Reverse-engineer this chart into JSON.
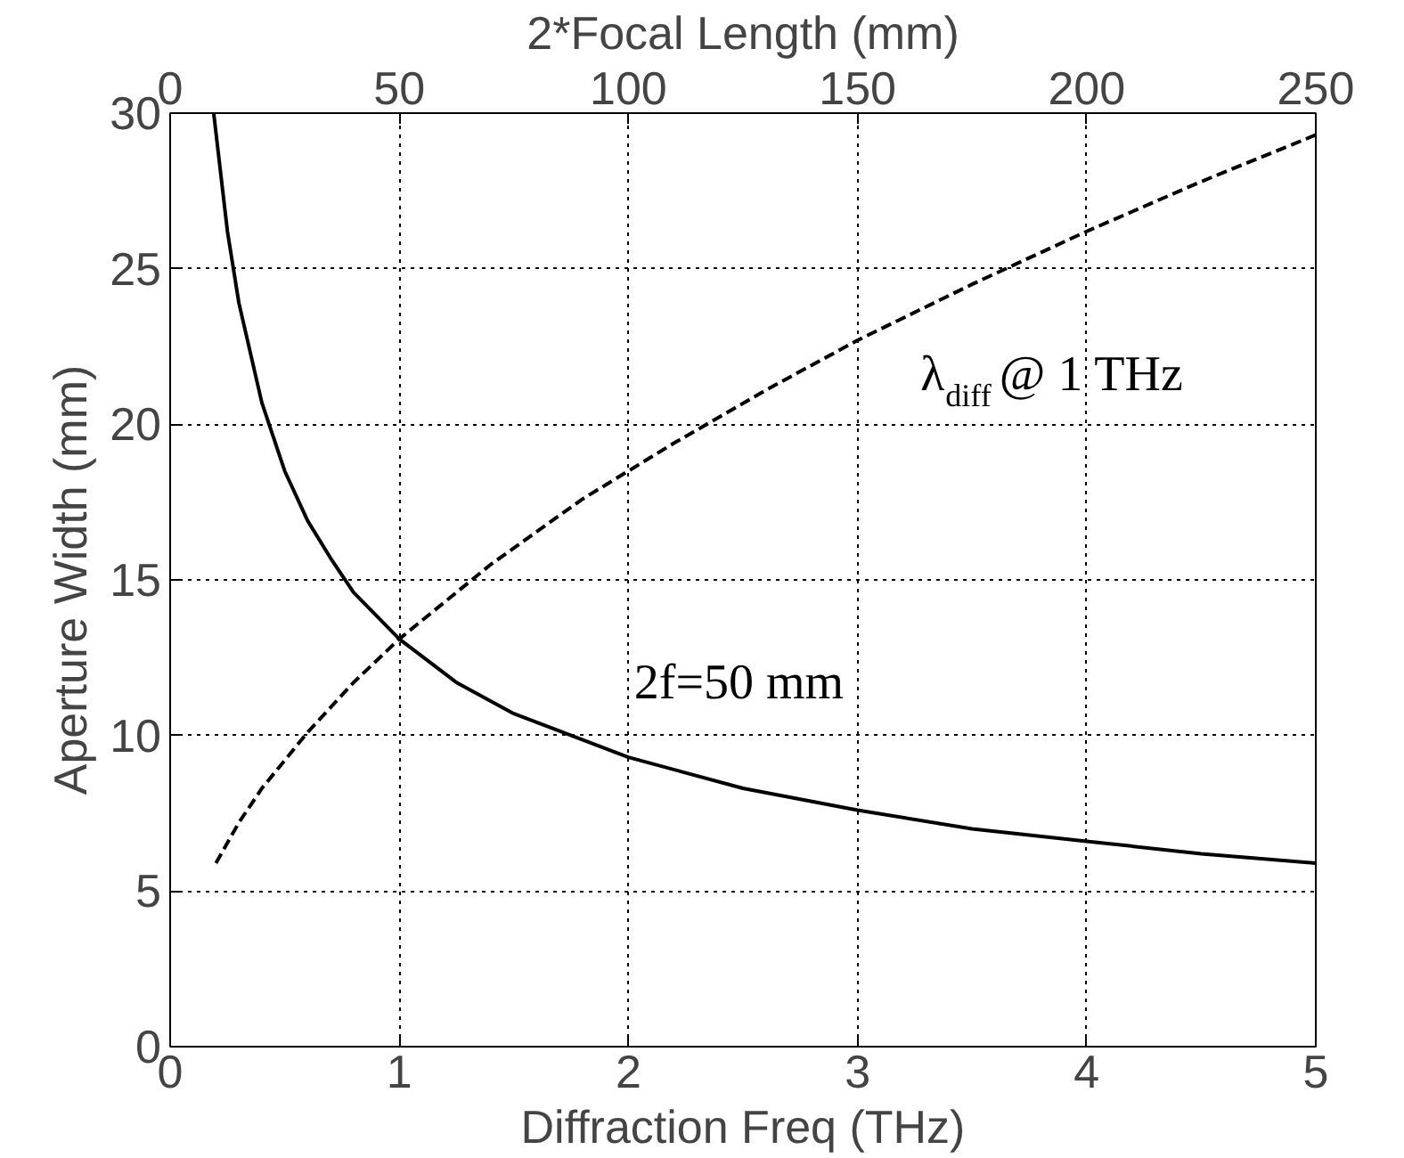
{
  "chart_data": {
    "type": "line",
    "xlabel": "Diffraction Freq (THz)",
    "ylabel": "Aperture Width (mm)",
    "x2label": "2*Focal Length (mm)",
    "xlim": [
      0,
      5
    ],
    "xticks": [
      0,
      1,
      2,
      3,
      4,
      5
    ],
    "x2lim": [
      0,
      250
    ],
    "x2ticks": [
      0,
      50,
      100,
      150,
      200,
      250
    ],
    "ylim": [
      0,
      30
    ],
    "yticks": [
      0,
      5,
      10,
      15,
      20,
      25,
      30
    ],
    "grid": true,
    "series": [
      {
        "color": "#000000",
        "line_style": "solid",
        "x": [
          0.19,
          0.25,
          0.3,
          0.4,
          0.5,
          0.6,
          0.7,
          0.8,
          1,
          1.25,
          1.5,
          2,
          2.5,
          3,
          3.5,
          4,
          4.5,
          5
        ],
        "values": [
          30,
          26.2,
          23.9,
          20.7,
          18.5,
          16.9,
          15.7,
          14.6,
          13.1,
          11.7,
          10.7,
          9.3,
          8.3,
          7.6,
          7.0,
          6.6,
          6.2,
          5.9
        ]
      },
      {
        "color": "#000000",
        "line_style": "dashed",
        "axis": "x2",
        "x": [
          10,
          15,
          20,
          30,
          40,
          50,
          70,
          90,
          110,
          130,
          150,
          175,
          200,
          225,
          250
        ],
        "values": [
          5.9,
          7.2,
          8.3,
          10.1,
          11.7,
          13.1,
          15.5,
          17.6,
          19.4,
          21.1,
          22.7,
          24.5,
          26.2,
          27.8,
          29.3
        ]
      }
    ],
    "annotations": [
      "λ$_{diff}$ @ 1 THz",
      "2f=50 mm"
    ]
  }
}
